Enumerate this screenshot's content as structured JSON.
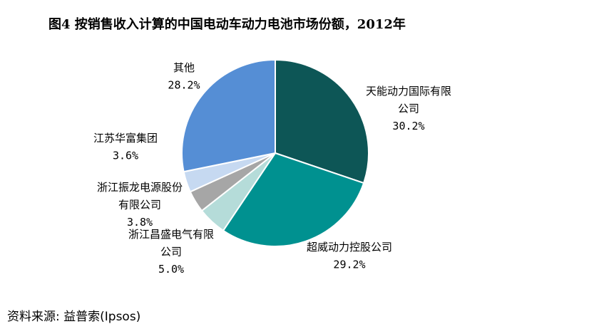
{
  "chart_data": {
    "type": "pie",
    "title": "图4 按销售收入计算的中国电动车动力电池市场份额，2012年",
    "start_angle": "12 o'clock",
    "direction": "clockwise",
    "slices": [
      {
        "label": [
          "天能动力国际有限",
          "公司"
        ],
        "value": 30.2,
        "value_label": "30.2%",
        "color": "#0d5656"
      },
      {
        "label": [
          "超威动力控股公司"
        ],
        "value": 29.2,
        "value_label": "29.2%",
        "color": "#009190"
      },
      {
        "label": [
          "浙江昌盛电气有限",
          "公司"
        ],
        "value": 5.0,
        "value_label": "5.0%",
        "color": "#b5dcd9"
      },
      {
        "label": [
          "浙江振龙电源股份",
          "有限公司"
        ],
        "value": 3.8,
        "value_label": "3.8%",
        "color": "#a6a6a6"
      },
      {
        "label": [
          "江苏华富集团"
        ],
        "value": 3.6,
        "value_label": "3.6%",
        "color": "#c6d9f1"
      },
      {
        "label": [
          "其他"
        ],
        "value": 28.2,
        "value_label": "28.2%",
        "color": "#558ed5"
      }
    ],
    "legend": "none"
  },
  "source": "资料来源: 益普索(Ipsos)"
}
